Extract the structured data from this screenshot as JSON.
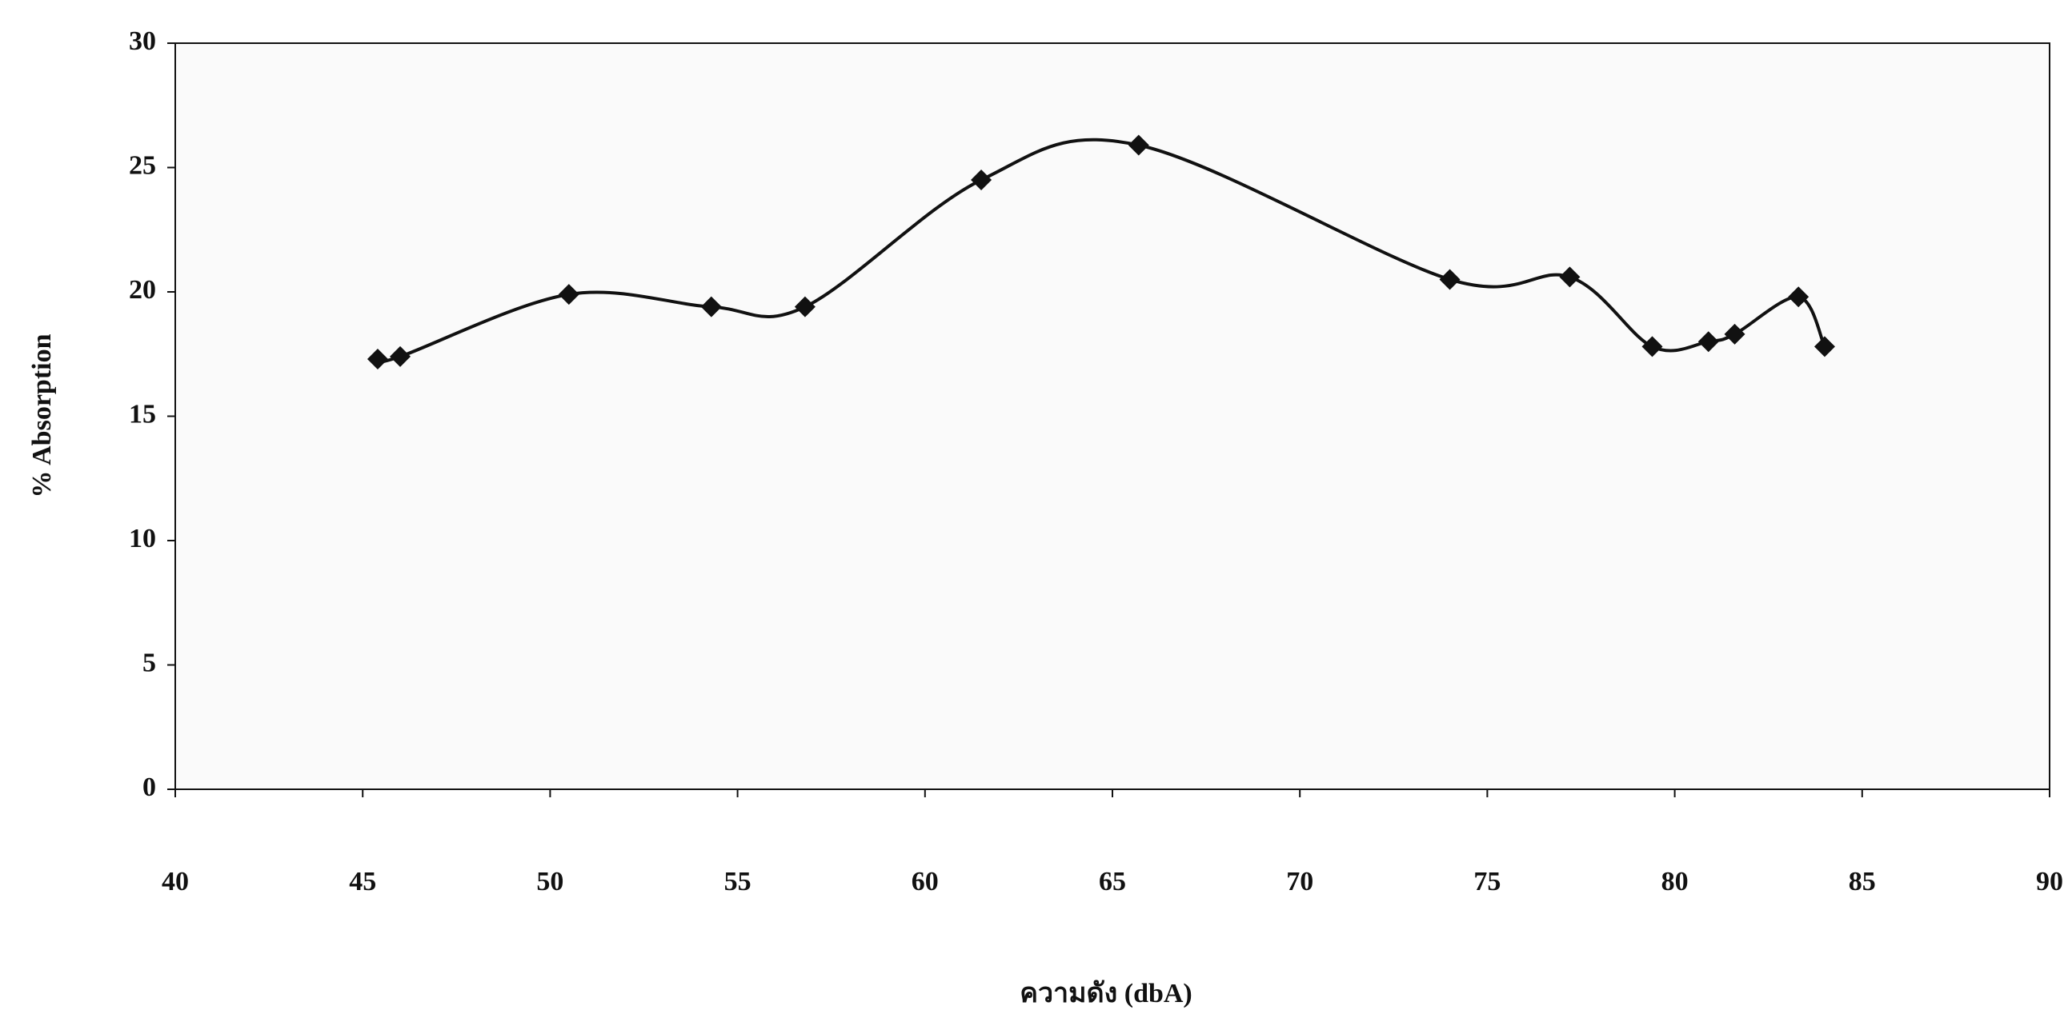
{
  "chart_data": {
    "type": "line",
    "x_label": "ความดัง (dbA)",
    "y_label": "% Absorption",
    "series": [
      {
        "color": "#111111",
        "x": [
          45.4,
          46.0,
          50.5,
          54.3,
          56.8,
          61.5,
          65.7,
          74.0,
          77.2,
          79.4,
          80.9,
          81.6,
          83.3,
          84.0
        ],
        "values": [
          17.3,
          17.4,
          19.9,
          19.4,
          19.4,
          24.5,
          25.9,
          20.5,
          20.6,
          17.8,
          18.0,
          18.3,
          19.8,
          17.8
        ]
      }
    ],
    "xlim": [
      40,
      90
    ],
    "xticks": [
      40,
      45,
      50,
      55,
      60,
      65,
      70,
      75,
      80,
      85,
      90
    ],
    "ylim": [
      0,
      30
    ],
    "yticks": [
      0,
      5,
      10,
      15,
      20,
      25,
      30
    ],
    "smooth": true
  }
}
